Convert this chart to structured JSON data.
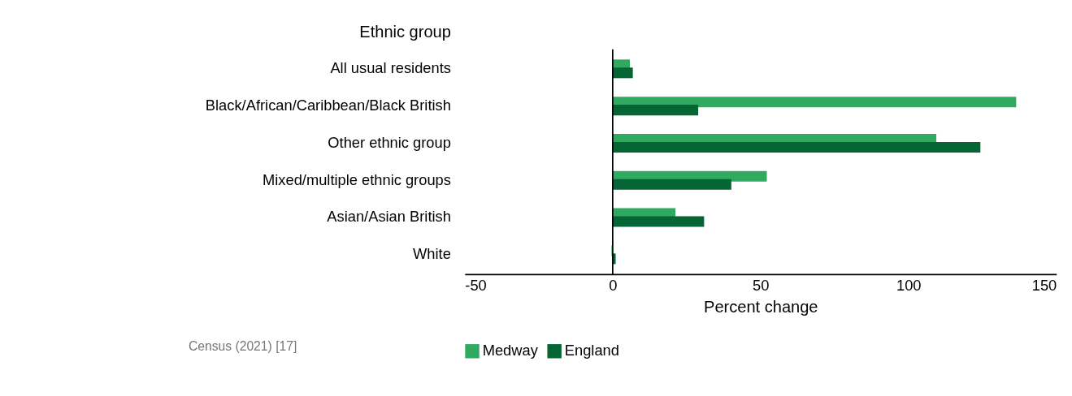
{
  "chart_data": {
    "type": "bar",
    "orientation": "horizontal",
    "ylabel": "Ethnic group",
    "xlabel": "Percent change",
    "categories": [
      "All usual residents",
      "Black/African/Caribbean/Black British",
      "Other ethnic group",
      "Mixed/multiple ethnic groups",
      "Asian/Asian British",
      "White"
    ],
    "series": [
      {
        "name": "Medway",
        "color": "#30aa60",
        "values": [
          5.8,
          136.4,
          109.4,
          52.1,
          21.2,
          -0.4
        ]
      },
      {
        "name": "England",
        "color": "#056535",
        "values": [
          6.8,
          28.9,
          124.3,
          40.1,
          30.9,
          1.0
        ]
      }
    ],
    "xlim": [
      -50,
      150
    ],
    "xticks": [
      -50,
      0,
      50,
      100,
      150
    ],
    "grid": false,
    "legend": "bottom",
    "ref_lines": [
      {
        "axis": "x",
        "value": 0,
        "color": "#000000"
      }
    ],
    "annotations": [
      "Census (2021) [17]"
    ]
  }
}
